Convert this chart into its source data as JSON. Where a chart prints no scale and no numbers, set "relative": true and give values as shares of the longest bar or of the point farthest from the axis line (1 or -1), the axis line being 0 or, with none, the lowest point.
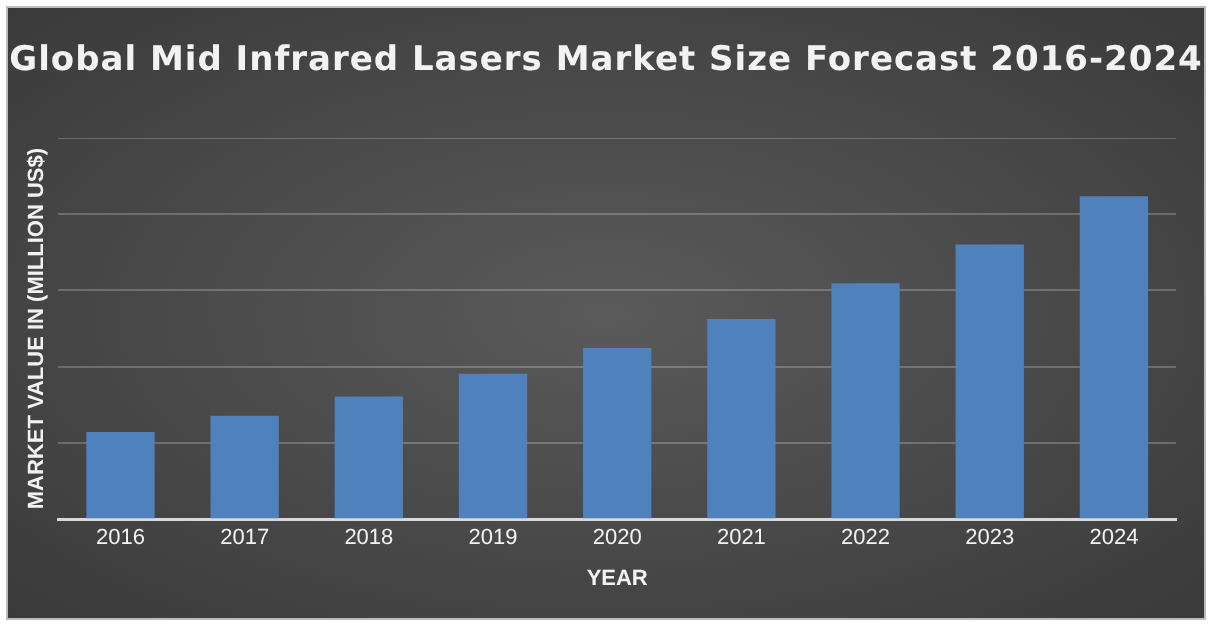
{
  "chart_data": {
    "type": "bar",
    "title": "Global Mid Infrared Lasers Market Size Forecast 2016-2024",
    "xlabel": "YEAR",
    "ylabel": "MARKET VALUE IN (MILLION US$)",
    "categories": [
      "2016",
      "2017",
      "2018",
      "2019",
      "2020",
      "2021",
      "2022",
      "2023",
      "2024"
    ],
    "values": [
      0.27,
      0.32,
      0.38,
      0.45,
      0.53,
      0.62,
      0.73,
      0.85,
      1
    ],
    "color": "#4f81bd",
    "relative": true,
    "grid": "y",
    "legend": false
  }
}
